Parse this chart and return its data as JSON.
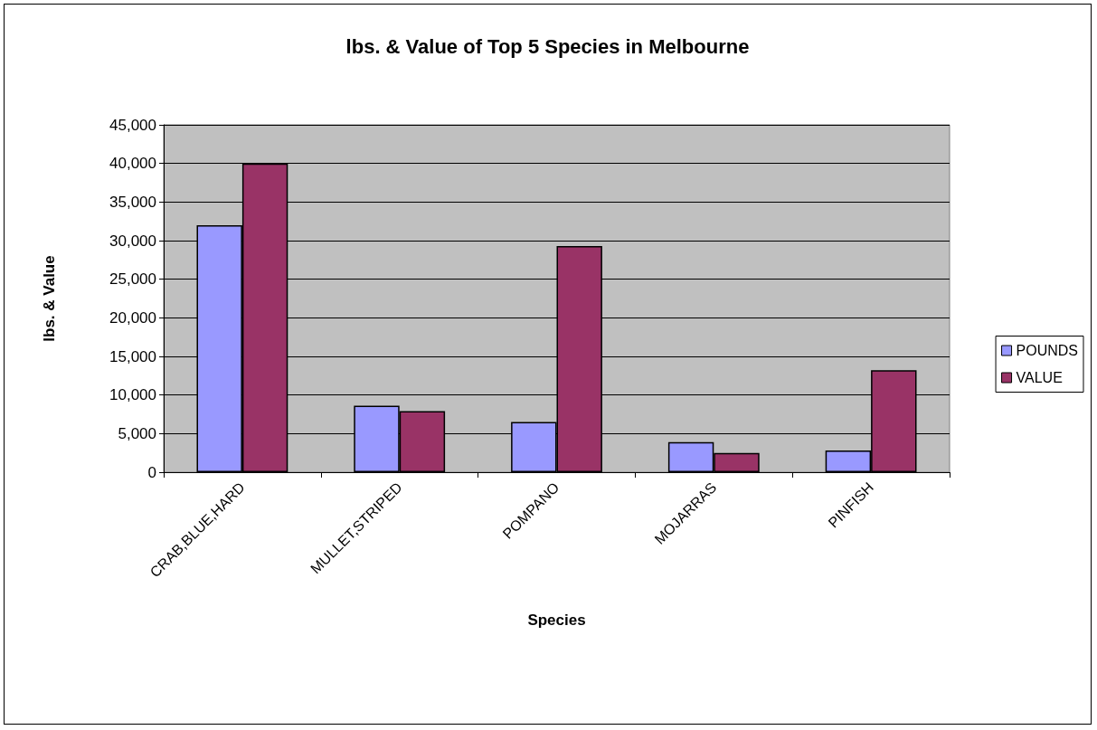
{
  "chart_data": {
    "type": "bar",
    "title": "lbs. & Value of Top 5 Species in Melbourne",
    "xlabel": "Species",
    "ylabel": "lbs. & Value",
    "categories": [
      "CRAB,BLUE,HARD",
      "MULLET,STRIPED",
      "POMPANO",
      "MOJARRAS",
      "PINFISH"
    ],
    "series": [
      {
        "name": "POUNDS",
        "color": "#9999ff",
        "values": [
          32000,
          8600,
          6500,
          3900,
          2800
        ]
      },
      {
        "name": "VALUE",
        "color": "#993366",
        "values": [
          40000,
          7900,
          29300,
          2500,
          13200
        ]
      }
    ],
    "ylim": [
      0,
      45000
    ],
    "yticks": [
      0,
      {
        "value": 5000,
        "label": "5,000"
      },
      {
        "value": 10000,
        "label": "10,000"
      },
      {
        "value": 15000,
        "label": "15,000"
      },
      {
        "value": 20000,
        "label": "20,000"
      },
      {
        "value": 25000,
        "label": "25,000"
      },
      {
        "value": 30000,
        "label": "30,000"
      },
      {
        "value": 35000,
        "label": "35,000"
      },
      {
        "value": 40000,
        "label": "40,000"
      },
      {
        "value": 45000,
        "label": "45,000"
      }
    ],
    "grid": "y",
    "legend": "right"
  }
}
